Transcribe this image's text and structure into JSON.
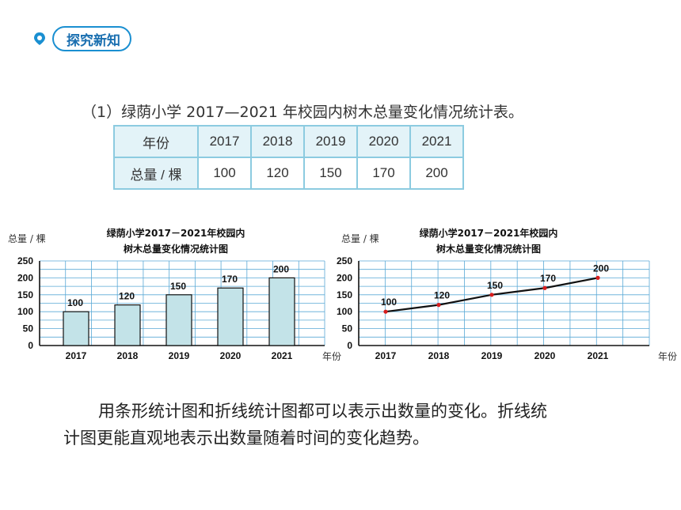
{
  "badge": {
    "label": "探究新知"
  },
  "table": {
    "caption": "（1）绿荫小学 2017—2021 年校园内树木总量变化情况统计表。",
    "header_label": "年份",
    "years": [
      "2017",
      "2018",
      "2019",
      "2020",
      "2021"
    ],
    "row_label": "总量 / 棵",
    "values": [
      "100",
      "120",
      "150",
      "170",
      "200"
    ]
  },
  "chart_data": [
    {
      "type": "bar",
      "title_lines": [
        "绿荫小学2017－2021年校园内",
        "树木总量变化情况统计图"
      ],
      "ylabel": "总量 / 棵",
      "xlabel": "年份",
      "categories": [
        "2017",
        "2018",
        "2019",
        "2020",
        "2021"
      ],
      "values": [
        100,
        120,
        150,
        170,
        200
      ],
      "ylim": [
        0,
        250
      ],
      "yticks": [
        0,
        50,
        100,
        150,
        200,
        250
      ],
      "grid": true,
      "color": "#c3e3e8"
    },
    {
      "type": "line",
      "title_lines": [
        "绿荫小学2017－2021年校园内",
        "树木总量变化情况统计图"
      ],
      "ylabel": "总量 / 棵",
      "xlabel": "年份",
      "categories": [
        "2017",
        "2018",
        "2019",
        "2020",
        "2021"
      ],
      "values": [
        100,
        120,
        150,
        170,
        200
      ],
      "ylim": [
        0,
        250
      ],
      "yticks": [
        0,
        50,
        100,
        150,
        200,
        250
      ],
      "grid": true,
      "color": "#111111",
      "marker_color": "#d81e1e"
    }
  ],
  "summary": {
    "line1": "用条形统计图和折线统计图都可以表示出数量的变化。折线统",
    "line2": "计图更能直观地表示出数量随着时间的变化趋势。"
  }
}
